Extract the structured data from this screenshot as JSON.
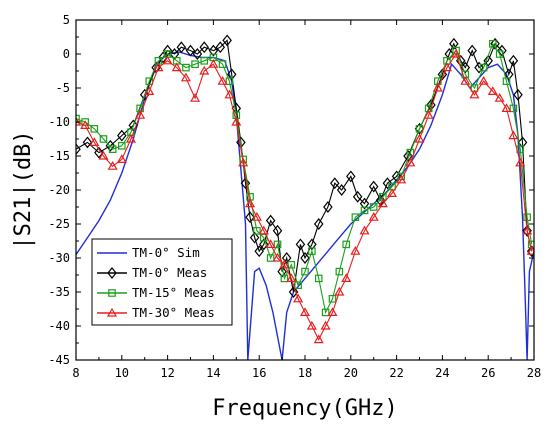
{
  "chart_data": {
    "type": "line",
    "title": "",
    "xlabel": "Frequency(GHz)",
    "ylabel": "|S21|(dB)",
    "xlim": [
      8,
      28
    ],
    "ylim": [
      -45,
      5
    ],
    "xticks": [
      8,
      10,
      12,
      14,
      16,
      18,
      20,
      22,
      24,
      26,
      28
    ],
    "yticks": [
      5,
      0,
      -5,
      -10,
      -15,
      -20,
      -25,
      -30,
      -35,
      -40,
      -45
    ],
    "xtick_labels": [
      "8",
      "10",
      "12",
      "14",
      "16",
      "18",
      "20",
      "22",
      "24",
      "26",
      "28"
    ],
    "ytick_labels": [
      "5",
      "0",
      "-5",
      "-10",
      "-15",
      "-20",
      "-25",
      "-30",
      "-35",
      "-40",
      "-45"
    ],
    "grid": false,
    "legend_position": "bottom-left",
    "series": [
      {
        "name": "TM-0° Sim",
        "color": "#1f2fd6",
        "marker": "none",
        "x": [
          8.0,
          8.5,
          9.0,
          9.5,
          10.0,
          10.5,
          11.0,
          11.5,
          12.0,
          12.5,
          13.0,
          13.5,
          14.0,
          14.5,
          14.8,
          15.0,
          15.2,
          15.4,
          15.5,
          15.8,
          16.0,
          16.3,
          16.6,
          17.0,
          17.2,
          17.5,
          18.0,
          18.5,
          19.0,
          19.5,
          20.0,
          20.5,
          21.0,
          21.5,
          22.0,
          22.5,
          23.0,
          23.5,
          24.0,
          24.4,
          24.8,
          25.2,
          25.6,
          26.0,
          26.4,
          26.8,
          27.1,
          27.3,
          27.5,
          27.6,
          27.7,
          27.8,
          28.0
        ],
        "y": [
          -29.5,
          -27.0,
          -24.5,
          -21.5,
          -17.5,
          -12.5,
          -6.5,
          -1.5,
          0.0,
          0.3,
          -0.2,
          -0.5,
          -0.5,
          -1.0,
          -4.0,
          -9.0,
          -17.0,
          -25.0,
          -45.0,
          -32.0,
          -31.5,
          -34.0,
          -38.0,
          -45.0,
          -38.0,
          -35.0,
          -33.0,
          -31.0,
          -29.0,
          -27.0,
          -25.0,
          -23.5,
          -22.0,
          -20.5,
          -18.5,
          -16.5,
          -14.0,
          -10.5,
          -6.0,
          -1.5,
          -3.0,
          -5.0,
          -3.5,
          -2.0,
          -1.5,
          -3.0,
          -6.0,
          -12.0,
          -24.0,
          -34.0,
          -45.0,
          -32.0,
          -29.0
        ]
      },
      {
        "name": "TM-0° Meas",
        "color": "#000000",
        "marker": "diamond",
        "x": [
          8.0,
          8.5,
          9.0,
          9.5,
          10.0,
          10.5,
          11.0,
          11.5,
          11.8,
          12.0,
          12.3,
          12.6,
          13.0,
          13.3,
          13.6,
          14.0,
          14.3,
          14.6,
          14.8,
          15.0,
          15.2,
          15.4,
          15.6,
          15.8,
          16.0,
          16.2,
          16.5,
          16.8,
          17.0,
          17.2,
          17.5,
          17.8,
          18.0,
          18.3,
          18.6,
          19.0,
          19.3,
          19.6,
          20.0,
          20.3,
          20.6,
          21.0,
          21.3,
          21.6,
          22.0,
          22.5,
          23.0,
          23.5,
          24.0,
          24.3,
          24.5,
          24.8,
          25.0,
          25.3,
          25.6,
          26.0,
          26.3,
          26.6,
          26.9,
          27.1,
          27.3,
          27.5,
          27.7,
          27.9
        ],
        "y": [
          -14.0,
          -13.0,
          -14.5,
          -13.5,
          -12.0,
          -10.5,
          -6.0,
          -2.0,
          -0.5,
          0.5,
          0.0,
          1.0,
          0.5,
          0.0,
          1.0,
          0.5,
          1.0,
          2.0,
          -3.0,
          -8.0,
          -13.0,
          -19.0,
          -24.0,
          -27.0,
          -29.0,
          -28.0,
          -24.5,
          -26.0,
          -32.0,
          -30.0,
          -35.0,
          -28.0,
          -30.0,
          -28.0,
          -25.0,
          -22.5,
          -19.0,
          -20.0,
          -18.0,
          -21.0,
          -22.0,
          -19.5,
          -21.5,
          -19.0,
          -18.0,
          -15.0,
          -11.0,
          -7.5,
          -3.0,
          0.0,
          1.5,
          -1.0,
          -2.0,
          0.5,
          -2.0,
          -1.0,
          1.5,
          0.5,
          -3.0,
          -1.0,
          -6.0,
          -13.0,
          -26.0,
          -29.0
        ]
      },
      {
        "name": "TM-15° Meas",
        "color": "#1aa01a",
        "marker": "square",
        "x": [
          8.0,
          8.4,
          8.8,
          9.2,
          9.6,
          10.0,
          10.4,
          10.8,
          11.2,
          11.6,
          12.0,
          12.4,
          12.8,
          13.2,
          13.6,
          14.0,
          14.4,
          14.7,
          15.0,
          15.3,
          15.6,
          15.9,
          16.2,
          16.5,
          16.8,
          17.1,
          17.4,
          17.7,
          18.0,
          18.3,
          18.6,
          18.9,
          19.2,
          19.5,
          19.8,
          20.2,
          20.6,
          21.0,
          21.4,
          21.8,
          22.2,
          22.6,
          23.0,
          23.4,
          23.8,
          24.2,
          24.6,
          25.0,
          25.4,
          25.8,
          26.2,
          26.5,
          26.8,
          27.1,
          27.4,
          27.7,
          27.9
        ],
        "y": [
          -9.5,
          -10.0,
          -11.0,
          -12.5,
          -14.0,
          -13.5,
          -11.5,
          -8.0,
          -4.0,
          -1.0,
          0.0,
          -1.0,
          -2.0,
          -1.5,
          -1.0,
          -0.5,
          -1.5,
          -4.0,
          -9.0,
          -15.5,
          -21.0,
          -26.0,
          -27.0,
          -30.0,
          -28.0,
          -33.0,
          -31.0,
          -34.0,
          -32.0,
          -29.0,
          -33.0,
          -38.0,
          -36.0,
          -32.0,
          -28.0,
          -24.0,
          -23.0,
          -22.5,
          -21.0,
          -19.5,
          -18.0,
          -14.5,
          -11.0,
          -8.0,
          -4.0,
          -1.0,
          0.5,
          -3.0,
          -5.0,
          -2.0,
          1.5,
          0.0,
          -4.0,
          -8.0,
          -14.0,
          -24.0,
          -28.0
        ]
      },
      {
        "name": "TM-30° Meas",
        "color": "#e81e1e",
        "marker": "triangle",
        "x": [
          8.0,
          8.4,
          8.8,
          9.2,
          9.6,
          10.0,
          10.4,
          10.8,
          11.2,
          11.6,
          12.0,
          12.4,
          12.8,
          13.2,
          13.6,
          14.0,
          14.4,
          14.7,
          15.0,
          15.3,
          15.6,
          15.9,
          16.2,
          16.5,
          16.8,
          17.1,
          17.4,
          17.7,
          18.0,
          18.3,
          18.6,
          18.9,
          19.2,
          19.5,
          19.8,
          20.2,
          20.6,
          21.0,
          21.4,
          21.8,
          22.2,
          22.6,
          23.0,
          23.4,
          23.8,
          24.2,
          24.6,
          25.0,
          25.4,
          25.8,
          26.2,
          26.5,
          26.8,
          27.1,
          27.4,
          27.7,
          27.9
        ],
        "y": [
          -10.0,
          -10.5,
          -13.0,
          -15.0,
          -16.5,
          -15.5,
          -12.5,
          -9.0,
          -5.5,
          -2.0,
          -1.0,
          -2.0,
          -3.5,
          -6.5,
          -2.5,
          -1.5,
          -4.0,
          -6.0,
          -10.0,
          -16.0,
          -22.0,
          -24.0,
          -26.0,
          -28.0,
          -30.0,
          -31.0,
          -33.0,
          -36.0,
          -38.0,
          -40.0,
          -42.0,
          -40.0,
          -38.0,
          -35.0,
          -33.0,
          -29.0,
          -26.0,
          -24.0,
          -22.0,
          -20.5,
          -18.5,
          -16.0,
          -12.5,
          -9.0,
          -5.0,
          -2.0,
          0.0,
          -4.0,
          -6.0,
          -4.0,
          -5.5,
          -6.5,
          -8.0,
          -12.0,
          -16.0,
          -26.0,
          -29.0
        ]
      }
    ]
  }
}
